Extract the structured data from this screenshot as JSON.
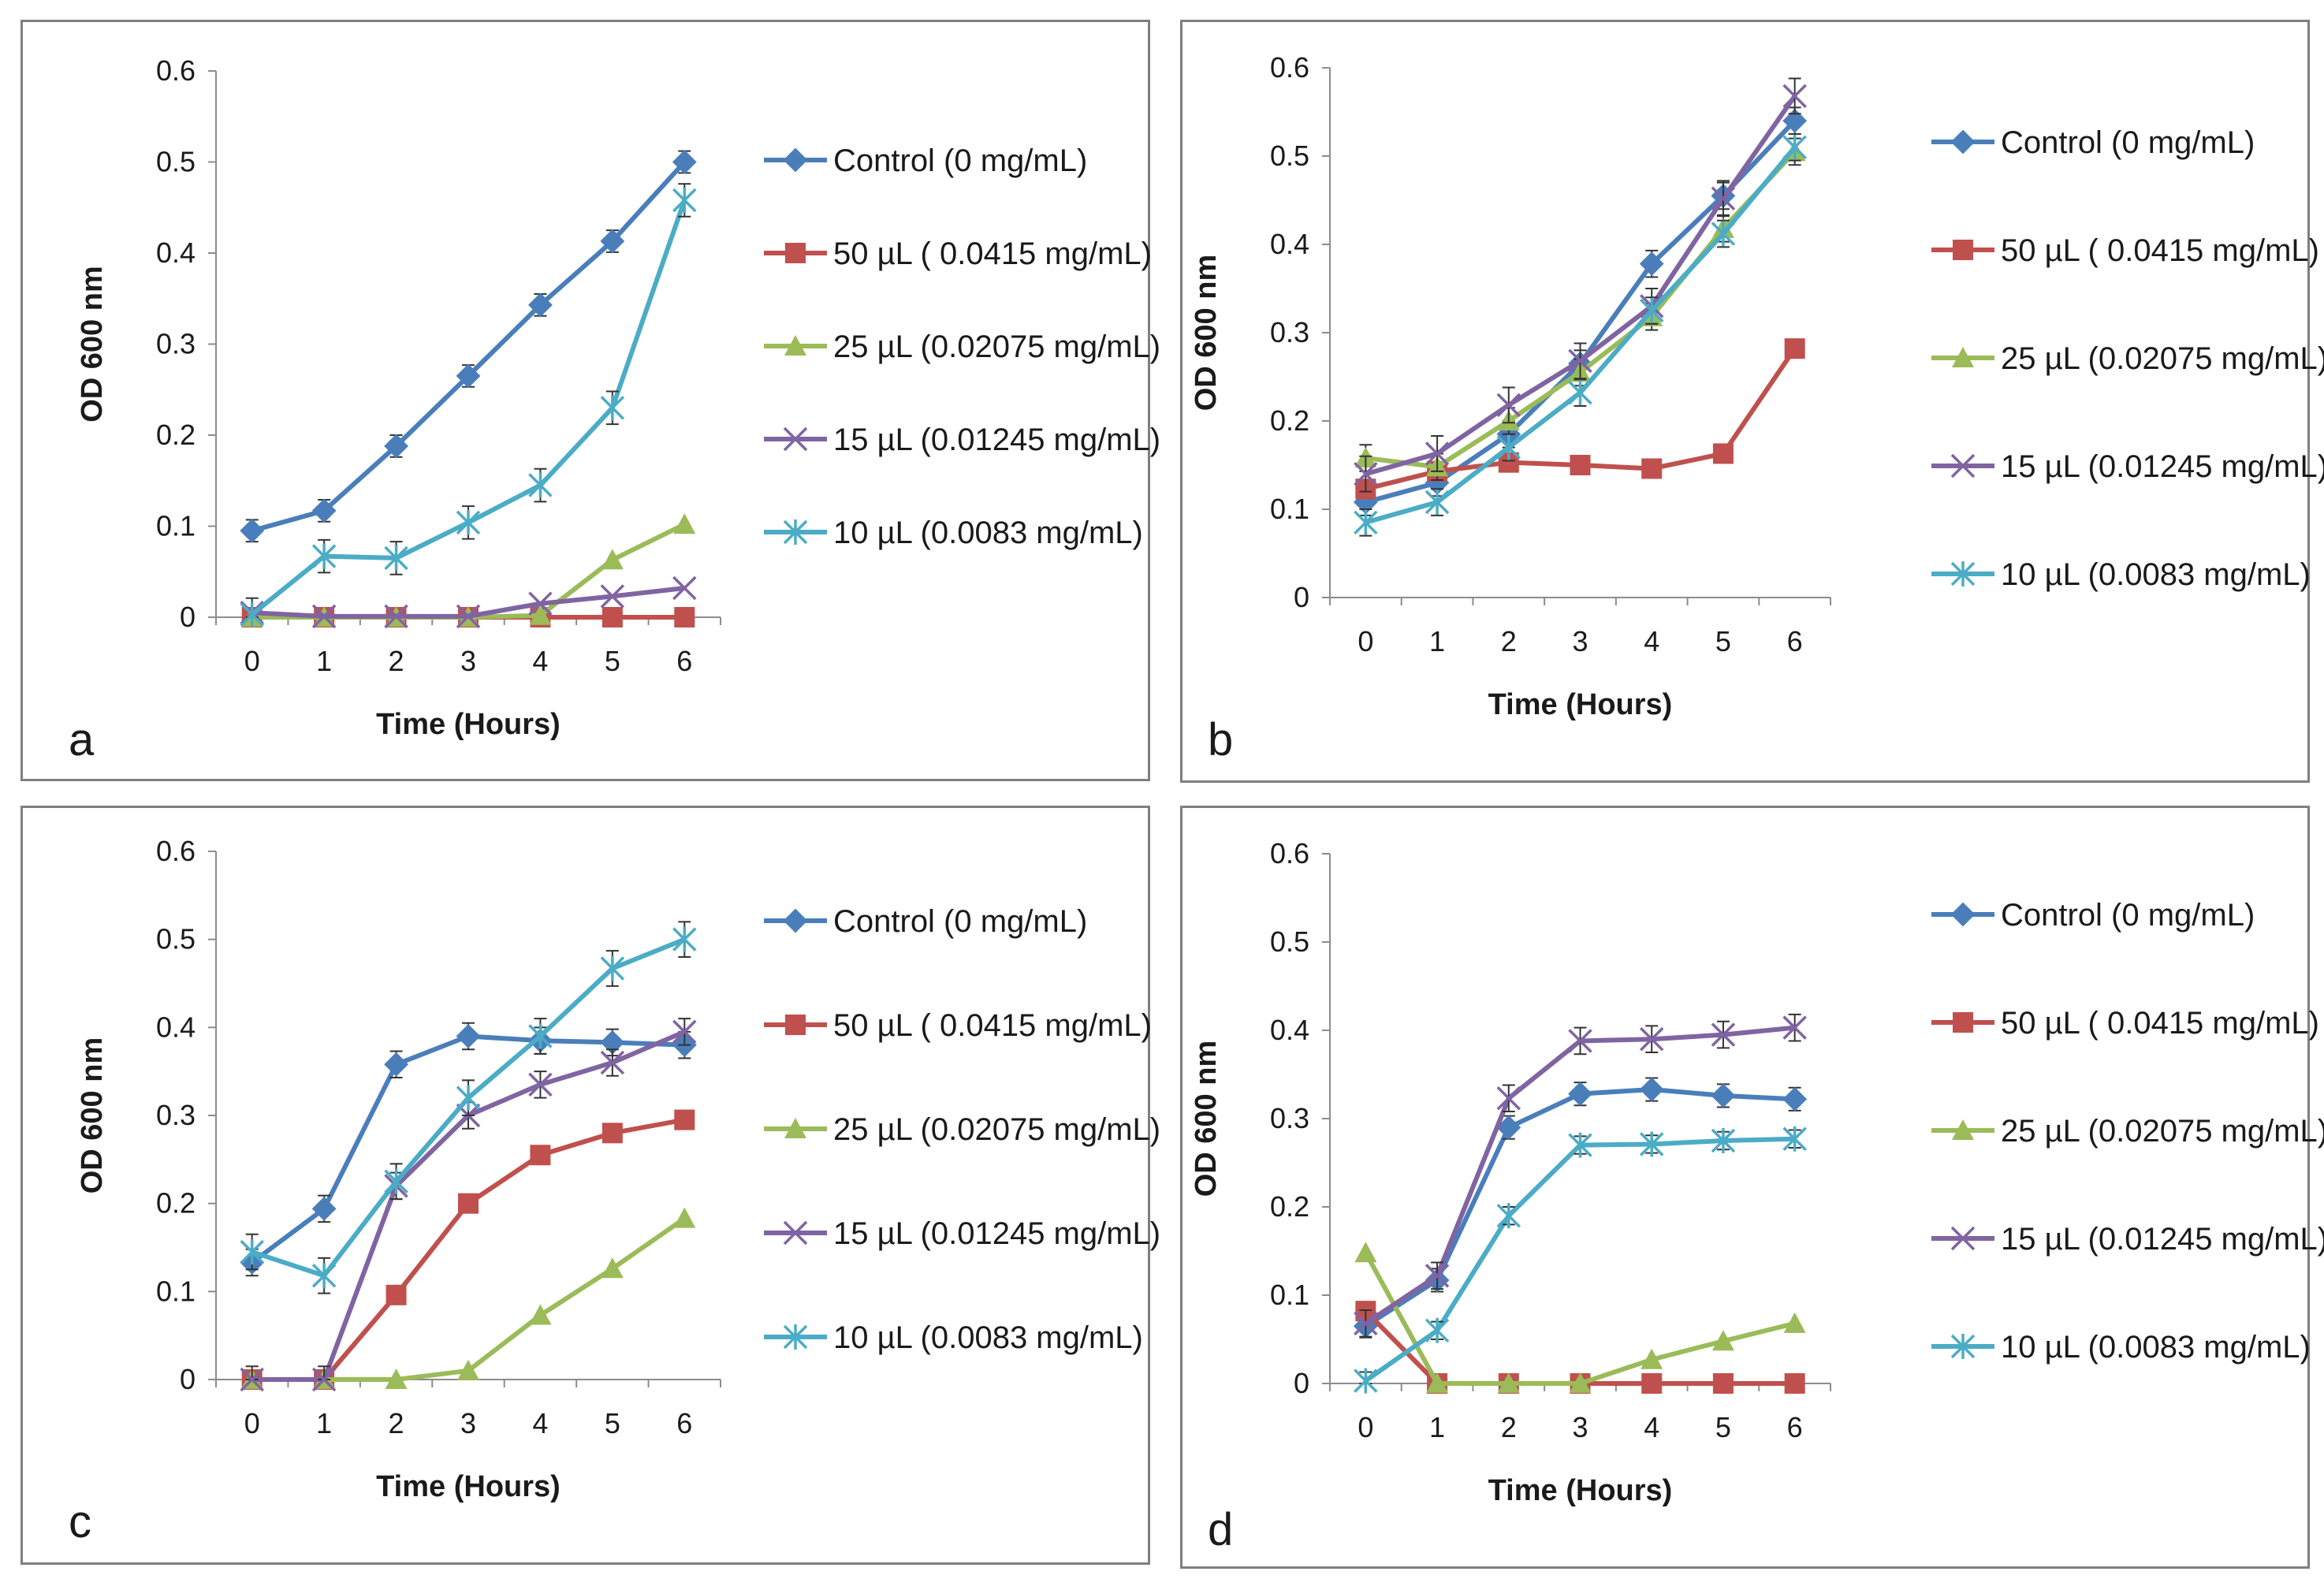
{
  "series_colors": {
    "control": "#4a7ebb",
    "50": "#c0504d",
    "25": "#9bbb59",
    "15": "#8064a2",
    "10": "#4bacc6"
  },
  "chart_data": [
    {
      "panel": "a",
      "type": "line",
      "xlabel": "Time (Hours)",
      "ylabel": "OD 600 nm",
      "x": [
        0,
        1,
        2,
        3,
        4,
        5,
        6
      ],
      "ylim": [
        0,
        0.6
      ],
      "yticks": [
        "0",
        "0.1",
        "0.2",
        "0.3",
        "0.4",
        "0.5",
        "0.6"
      ],
      "xticks": [
        "0",
        "1",
        "2",
        "3",
        "4",
        "5",
        "6"
      ],
      "series": [
        {
          "name": "Control (0 mg/mL)",
          "key": "control",
          "marker": "diamond",
          "values": [
            0.095,
            0.117,
            0.188,
            0.265,
            0.343,
            0.413,
            0.5
          ],
          "err": 0.012
        },
        {
          "name": "50 µL ( 0.0415 mg/mL)",
          "key": "50",
          "marker": "square",
          "values": [
            0,
            0,
            0,
            0,
            0,
            0,
            0
          ],
          "err": 0
        },
        {
          "name": "25 µL (0.02075 mg/mL)",
          "key": "25",
          "marker": "triangle",
          "values": [
            0,
            0,
            0,
            0,
            0.002,
            0.063,
            0.102
          ],
          "err": 0
        },
        {
          "name": "15 µL  (0.01245 mg/mL)",
          "key": "15",
          "marker": "x",
          "values": [
            0.005,
            0.001,
            0.001,
            0.001,
            0.015,
            0.023,
            0.032
          ],
          "err": 0
        },
        {
          "name": "10 µL  (0.0083 mg/mL)",
          "key": "10",
          "marker": "star",
          "values": [
            0.003,
            0.067,
            0.065,
            0.104,
            0.145,
            0.23,
            0.458
          ],
          "err": 0.018
        }
      ]
    },
    {
      "panel": "b",
      "type": "line",
      "xlabel": "Time (Hours)",
      "ylabel": "OD 600 nm",
      "x": [
        0,
        1,
        2,
        3,
        4,
        5,
        6
      ],
      "ylim": [
        0,
        0.6
      ],
      "yticks": [
        "0",
        "0.1",
        "0.2",
        "0.3",
        "0.4",
        "0.5",
        "0.6"
      ],
      "xticks": [
        "0",
        "1",
        "2",
        "3",
        "4",
        "5",
        "6"
      ],
      "series": [
        {
          "name": "Control (0 mg/mL)",
          "key": "control",
          "marker": "diamond",
          "values": [
            0.108,
            0.13,
            0.185,
            0.265,
            0.378,
            0.455,
            0.54
          ],
          "err": 0.015
        },
        {
          "name": "50 µL ( 0.0415 mg/mL)",
          "key": "50",
          "marker": "square",
          "values": [
            0.123,
            0.143,
            0.153,
            0.15,
            0.146,
            0.163,
            0.282
          ],
          "err": 0
        },
        {
          "name": "25 µL (0.02075 mg/mL)",
          "key": "25",
          "marker": "triangle",
          "values": [
            0.158,
            0.148,
            0.2,
            0.255,
            0.318,
            0.418,
            0.505
          ],
          "err": 0.015
        },
        {
          "name": "15 µL  (0.01245 mg/mL)",
          "key": "15",
          "marker": "x",
          "values": [
            0.14,
            0.163,
            0.218,
            0.268,
            0.33,
            0.452,
            0.568
          ],
          "err": 0.02
        },
        {
          "name": "10 µL  (0.0083 mg/mL)",
          "key": "10",
          "marker": "star",
          "values": [
            0.085,
            0.108,
            0.17,
            0.232,
            0.325,
            0.412,
            0.51
          ],
          "err": 0.015
        }
      ]
    },
    {
      "panel": "c",
      "type": "line",
      "xlabel": "Time (Hours)",
      "ylabel": "OD 600 nm",
      "x": [
        0,
        1,
        2,
        3,
        4,
        5,
        6
      ],
      "ylim": [
        0,
        0.6
      ],
      "yticks": [
        "0",
        "0.1",
        "0.2",
        "0.3",
        "0.4",
        "0.5",
        "0.6"
      ],
      "xticks": [
        "0",
        "1",
        "2",
        "3",
        "4",
        "5",
        "6"
      ],
      "series": [
        {
          "name": "Control (0 mg/mL)",
          "key": "control",
          "marker": "diamond",
          "values": [
            0.133,
            0.194,
            0.358,
            0.39,
            0.385,
            0.383,
            0.38
          ],
          "err": 0.015
        },
        {
          "name": "50 µL ( 0.0415 mg/mL)",
          "key": "50",
          "marker": "square",
          "values": [
            0,
            0,
            0.096,
            0.2,
            0.255,
            0.28,
            0.295
          ],
          "err": 0
        },
        {
          "name": "25 µL (0.02075 mg/mL)",
          "key": "25",
          "marker": "triangle",
          "values": [
            0,
            0,
            0,
            0.01,
            0.073,
            0.126,
            0.183
          ],
          "err": 0
        },
        {
          "name": "15 µL  (0.01245 mg/mL)",
          "key": "15",
          "marker": "x",
          "values": [
            0,
            0,
            0.22,
            0.3,
            0.335,
            0.36,
            0.395
          ],
          "err": 0.015
        },
        {
          "name": "10 µL  (0.0083 mg/mL)",
          "key": "10",
          "marker": "star",
          "values": [
            0.145,
            0.118,
            0.225,
            0.32,
            0.39,
            0.467,
            0.5
          ],
          "err": 0.02
        }
      ]
    },
    {
      "panel": "d",
      "type": "line",
      "xlabel": "Time (Hours)",
      "ylabel": "OD 600 nm",
      "x": [
        0,
        1,
        2,
        3,
        4,
        5,
        6
      ],
      "ylim": [
        0,
        0.6
      ],
      "yticks": [
        "0",
        "0.1",
        "0.2",
        "0.3",
        "0.4",
        "0.5",
        "0.6"
      ],
      "xticks": [
        "0",
        "1",
        "2",
        "3",
        "4",
        "5",
        "6"
      ],
      "series": [
        {
          "name": "Control (0 mg/mL)",
          "key": "control",
          "marker": "diamond",
          "values": [
            0.065,
            0.117,
            0.29,
            0.328,
            0.333,
            0.326,
            0.322
          ],
          "err": 0.013
        },
        {
          "name": "50 µL ( 0.0415 mg/mL)",
          "key": "50",
          "marker": "square",
          "values": [
            0.082,
            0,
            0,
            0,
            0,
            0,
            0
          ],
          "err": 0
        },
        {
          "name": "25 µL (0.02075 mg/mL)",
          "key": "25",
          "marker": "triangle",
          "values": [
            0.148,
            0,
            0,
            0,
            0.027,
            0.048,
            0.068
          ],
          "err": 0
        },
        {
          "name": "15 µL  (0.01245 mg/mL)",
          "key": "15",
          "marker": "x",
          "values": [
            0.068,
            0.122,
            0.323,
            0.388,
            0.39,
            0.395,
            0.403
          ],
          "err": 0.015
        },
        {
          "name": "10 µL  (0.0083 mg/mL)",
          "key": "10",
          "marker": "star",
          "values": [
            0.003,
            0.06,
            0.19,
            0.27,
            0.271,
            0.275,
            0.277
          ],
          "err": 0.01
        }
      ]
    }
  ]
}
